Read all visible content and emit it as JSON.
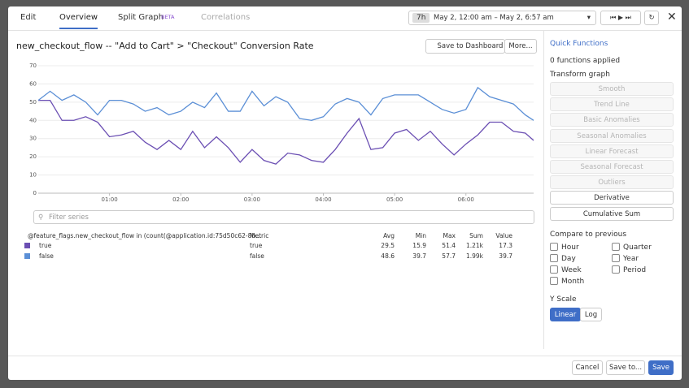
{
  "tabs": {
    "edit": "Edit",
    "overview": "Overview",
    "split": "Split Graph",
    "beta": "BETA",
    "correlations": "Correlations"
  },
  "time": {
    "span": "7h",
    "range": "May 2, 12:00 am – May 2, 6:57 am"
  },
  "actions": {
    "save_dashboard": "Save to Dashboard",
    "more": "More..."
  },
  "chart_data": {
    "type": "line",
    "title": "new_checkout_flow -- \"Add to Cart\" > \"Checkout\" Conversion Rate",
    "x": [
      0,
      10,
      20,
      30,
      40,
      50,
      60,
      70,
      80,
      90,
      100,
      110,
      120,
      130,
      140,
      150,
      160,
      170,
      180,
      190,
      200,
      210,
      220,
      230,
      240,
      250,
      260,
      270,
      280,
      290,
      300,
      310,
      320,
      330,
      340,
      350,
      360,
      370,
      380,
      390,
      400,
      410,
      417
    ],
    "xlim": [
      0,
      417
    ],
    "xticks": [
      {
        "value": 60,
        "label": "01:00"
      },
      {
        "value": 120,
        "label": "02:00"
      },
      {
        "value": 180,
        "label": "03:00"
      },
      {
        "value": 240,
        "label": "04:00"
      },
      {
        "value": 300,
        "label": "05:00"
      },
      {
        "value": 360,
        "label": "06:00"
      }
    ],
    "ylim": [
      0,
      70
    ],
    "yticks": [
      0,
      10,
      20,
      30,
      40,
      50,
      60,
      70
    ],
    "grid": true,
    "series": [
      {
        "name": "true",
        "color": "#6b4fb3",
        "values": [
          51,
          51,
          40,
          40,
          42,
          39,
          31,
          32,
          34,
          28,
          24,
          29,
          24,
          34,
          25,
          31,
          25,
          17,
          24,
          18,
          16,
          22,
          21,
          18,
          17,
          24,
          33,
          41,
          24,
          25,
          33,
          35,
          29,
          34,
          27,
          21,
          27,
          32,
          39,
          39,
          34,
          33,
          29
        ]
      },
      {
        "name": "false",
        "color": "#5b8fd6",
        "values": [
          51,
          56,
          51,
          54,
          50,
          43,
          51,
          51,
          49,
          45,
          47,
          43,
          45,
          50,
          47,
          55,
          45,
          45,
          56,
          48,
          53,
          50,
          41,
          40,
          42,
          49,
          52,
          50,
          43,
          52,
          54,
          54,
          54,
          50,
          46,
          44,
          46,
          58,
          53,
          51,
          49,
          43,
          40
        ]
      }
    ]
  },
  "filter": "Filter series",
  "table": {
    "header": [
      "@feature_flags.new_checkout_flow in (count(@application.id:75d50c62-8b...",
      "Metric",
      "Avg",
      "Min",
      "Max",
      "Sum",
      "Value"
    ],
    "rows": [
      {
        "metric": "true",
        "stats": [
          "29.5",
          "15.9",
          "51.4",
          "1.21k",
          "17.3"
        ]
      },
      {
        "metric": "false",
        "stats": [
          "48.6",
          "39.7",
          "57.7",
          "1.99k",
          "39.7"
        ]
      }
    ]
  },
  "side": {
    "quick": "Quick Functions",
    "applied": "0 functions applied",
    "transform": "Transform graph",
    "buttons": [
      "Smooth",
      "Trend Line",
      "Basic Anomalies",
      "Seasonal Anomalies",
      "Linear Forecast",
      "Seasonal Forecast",
      "Outliers",
      "Derivative",
      "Cumulative Sum"
    ],
    "compare": "Compare to previous",
    "periods": [
      "Hour",
      "Quarter",
      "Day",
      "Year",
      "Week",
      "Period",
      "Month"
    ],
    "yscale": "Y Scale",
    "linear": "Linear",
    "log": "Log"
  },
  "footer": {
    "cancel": "Cancel",
    "save_to": "Save to...",
    "save": "Save"
  }
}
